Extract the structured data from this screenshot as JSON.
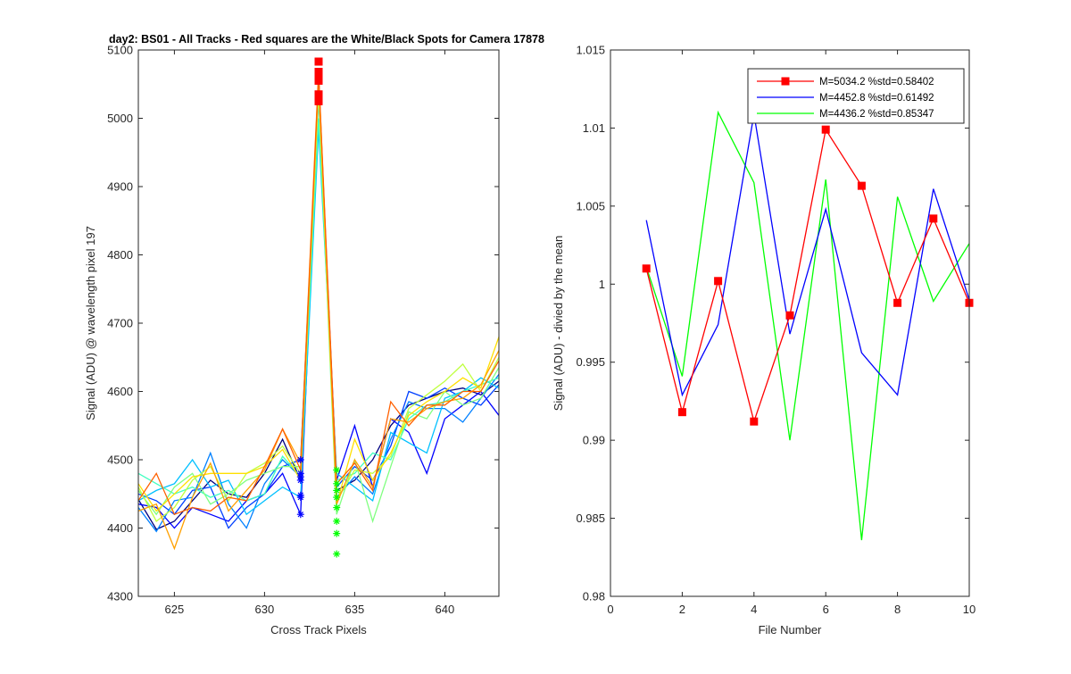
{
  "chart_data": [
    {
      "type": "line",
      "title": "day2: BS01 - All Tracks - Red squares are the  White/Black Spots for Camera 17878",
      "xlabel": "Cross Track Pixels",
      "ylabel": "Signal (ADU) @ wavelength pixel 197",
      "xlim": [
        623,
        643
      ],
      "ylim": [
        4300,
        5100
      ],
      "xticks": [
        625,
        630,
        635,
        640
      ],
      "yticks": [
        4300,
        4400,
        4500,
        4600,
        4700,
        4800,
        4900,
        5000,
        5100
      ],
      "grid": false,
      "x": [
        623,
        624,
        625,
        626,
        627,
        628,
        629,
        630,
        631,
        632,
        633,
        634,
        635,
        636,
        637,
        638,
        639,
        640,
        641,
        642,
        643
      ],
      "series": [
        {
          "color": "#000080",
          "values": [
            4442,
            4398,
            4410,
            4440,
            4470,
            4450,
            4445,
            4480,
            4530,
            4470,
            5060,
            4455,
            4470,
            4500,
            4550,
            4580,
            4590,
            4600,
            4605,
            4595,
            4615
          ]
        },
        {
          "color": "#0000ff",
          "values": [
            4435,
            4430,
            4400,
            4430,
            4420,
            4410,
            4440,
            4450,
            4480,
            4420,
            5040,
            4470,
            4550,
            4460,
            4560,
            4540,
            4480,
            4560,
            4580,
            4600,
            4565
          ]
        },
        {
          "color": "#0040ff",
          "values": [
            4450,
            4440,
            4420,
            4455,
            4460,
            4400,
            4430,
            4450,
            4490,
            4500,
            5050,
            4460,
            4490,
            4470,
            4520,
            4600,
            4590,
            4605,
            4590,
            4580,
            4610
          ]
        },
        {
          "color": "#0080ff",
          "values": [
            4430,
            4395,
            4440,
            4445,
            4510,
            4435,
            4400,
            4465,
            4500,
            4475,
            5030,
            4445,
            4475,
            4450,
            4530,
            4585,
            4575,
            4575,
            4555,
            4590,
            4625
          ]
        },
        {
          "color": "#00c0ff",
          "values": [
            4440,
            4455,
            4465,
            4500,
            4460,
            4470,
            4420,
            4440,
            4460,
            4445,
            4985,
            4480,
            4460,
            4440,
            4540,
            4525,
            4510,
            4590,
            4600,
            4620,
            4605
          ]
        },
        {
          "color": "#40ffc0",
          "values": [
            4480,
            4465,
            4450,
            4460,
            4445,
            4455,
            4440,
            4450,
            4505,
            4475,
            5000,
            4470,
            4480,
            4510,
            4500,
            4560,
            4580,
            4585,
            4600,
            4610,
            4620
          ]
        },
        {
          "color": "#80ff80",
          "values": [
            4455,
            4420,
            4460,
            4480,
            4435,
            4450,
            4470,
            4480,
            4490,
            4490,
            5035,
            4420,
            4500,
            4410,
            4490,
            4570,
            4560,
            4600,
            4580,
            4590,
            4635
          ]
        },
        {
          "color": "#c0ff40",
          "values": [
            4460,
            4410,
            4430,
            4470,
            4490,
            4440,
            4480,
            4495,
            4520,
            4480,
            5045,
            4440,
            4485,
            4480,
            4505,
            4575,
            4595,
            4615,
            4640,
            4600,
            4650
          ]
        },
        {
          "color": "#ffe000",
          "values": [
            4465,
            4425,
            4450,
            4475,
            4480,
            4480,
            4480,
            4490,
            4515,
            4470,
            5050,
            4435,
            4530,
            4470,
            4510,
            4565,
            4585,
            4600,
            4620,
            4605,
            4680
          ]
        },
        {
          "color": "#ffa000",
          "values": [
            4425,
            4435,
            4370,
            4445,
            4495,
            4425,
            4455,
            4485,
            4545,
            4495,
            5070,
            4435,
            4500,
            4460,
            4560,
            4555,
            4575,
            4585,
            4590,
            4610,
            4660
          ]
        },
        {
          "color": "#ff6000",
          "values": [
            4440,
            4480,
            4420,
            4430,
            4425,
            4445,
            4440,
            4490,
            4545,
            4485,
            5065,
            4465,
            4495,
            4455,
            4585,
            4550,
            4580,
            4580,
            4600,
            4600,
            4645
          ]
        }
      ],
      "markers": [
        {
          "symbol": "asterisk",
          "color": "#0000ff",
          "x": 632,
          "values": [
            4420,
            4445,
            4448,
            4470,
            4475,
            4480,
            4500
          ]
        },
        {
          "symbol": "asterisk",
          "color": "#00ff00",
          "x": 634,
          "values": [
            4362,
            4392,
            4410,
            4430,
            4445,
            4455,
            4465,
            4485
          ]
        },
        {
          "symbol": "square",
          "color": "#ff0000",
          "x": 633,
          "values": [
            5025,
            5035,
            5055,
            5060,
            5068,
            5083
          ]
        }
      ]
    },
    {
      "type": "line",
      "title": "",
      "xlabel": "File Number",
      "ylabel": "Signal (ADU) - divied by the mean",
      "xlim": [
        0,
        10
      ],
      "ylim": [
        0.98,
        1.015
      ],
      "xticks": [
        0,
        2,
        4,
        6,
        8,
        10
      ],
      "yticks": [
        0.98,
        0.985,
        0.99,
        0.995,
        1,
        1.005,
        1.01,
        1.015
      ],
      "ytick_labels": [
        "0.98",
        "0.985",
        "0.99",
        "0.995",
        "1",
        "1.005",
        "1.01",
        "1.015"
      ],
      "grid": false,
      "legend_position": "top-right",
      "x": [
        1,
        2,
        3,
        4,
        5,
        6,
        7,
        8,
        9,
        10
      ],
      "series": [
        {
          "name": "M=5034.2 %std=0.58402",
          "color": "#ff0000",
          "marker": "square",
          "values": [
            1.001,
            0.9918,
            1.0002,
            0.9912,
            0.998,
            1.0099,
            1.0063,
            0.9988,
            1.0042,
            0.9988
          ]
        },
        {
          "name": "M=4452.8 %std=0.61492",
          "color": "#0000ff",
          "values": [
            1.0041,
            0.9929,
            0.9974,
            1.0109,
            0.9968,
            1.0048,
            0.9956,
            0.9929,
            1.0061,
            0.999
          ]
        },
        {
          "name": "M=4436.2 %std=0.85347",
          "color": "#00ff00",
          "values": [
            1.0011,
            0.9941,
            1.011,
            1.0065,
            0.99,
            1.0067,
            0.9836,
            1.0056,
            0.9989,
            1.0026
          ]
        }
      ]
    }
  ]
}
